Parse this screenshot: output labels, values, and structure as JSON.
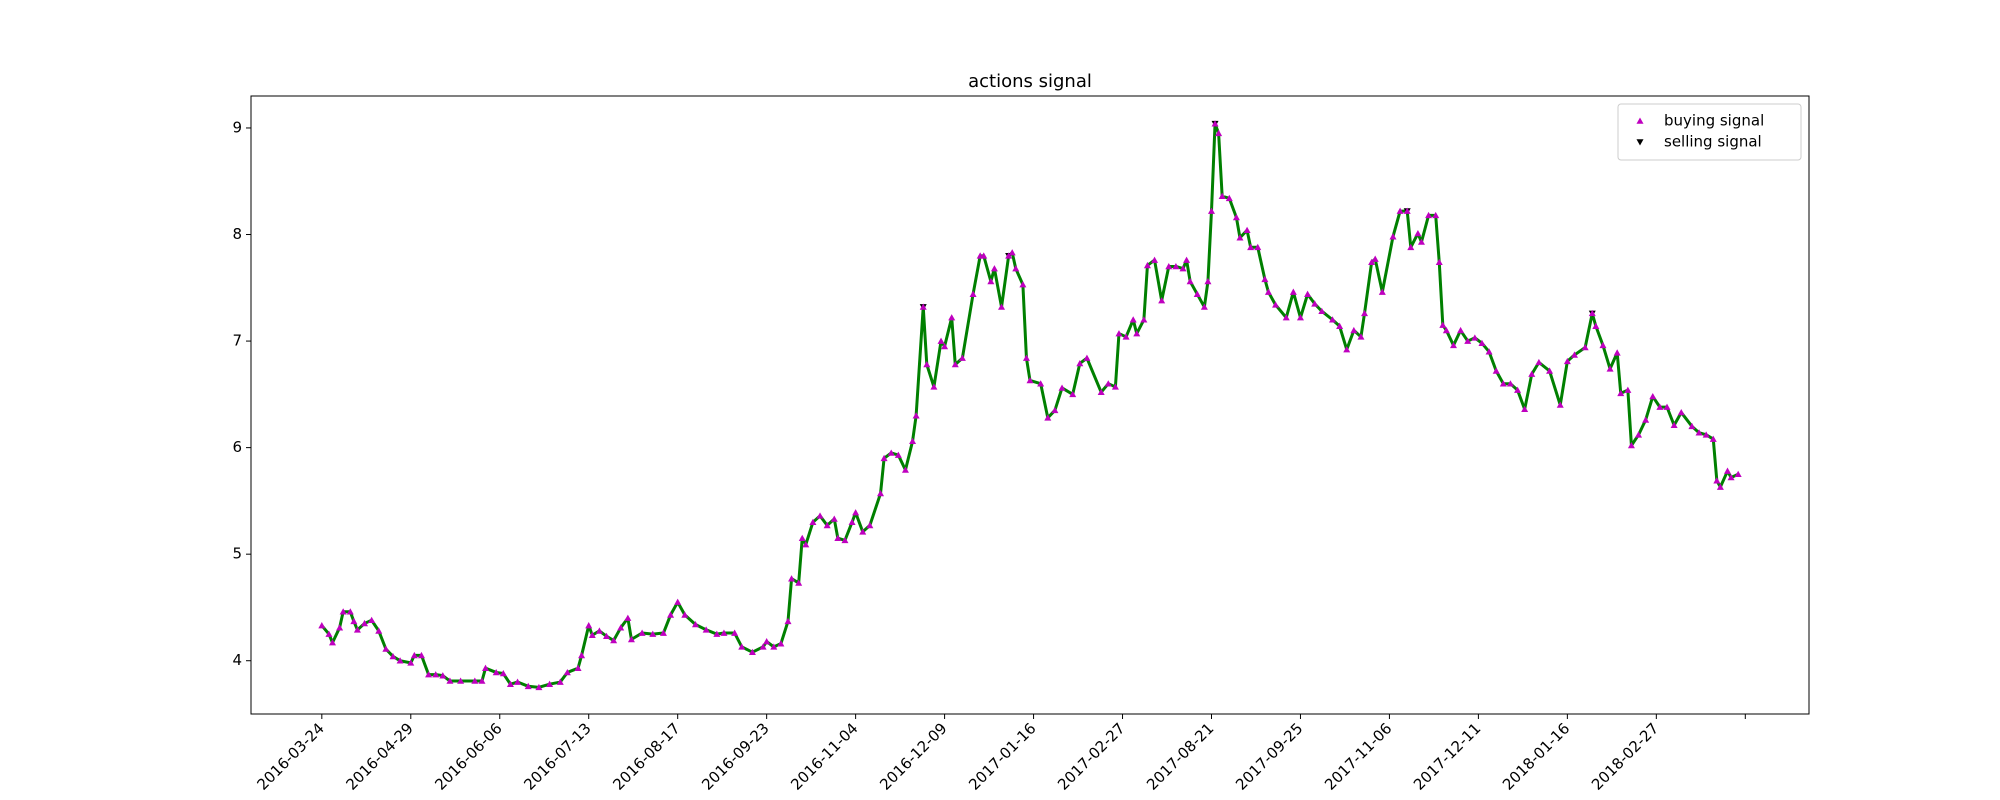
{
  "chart_data": {
    "type": "line",
    "title": "actions signal",
    "series": [
      {
        "color": "#008000",
        "x": [
          0,
          2,
          3,
          5,
          6,
          8,
          9,
          10,
          12,
          14,
          16,
          18,
          20,
          22,
          25,
          26,
          28,
          30,
          32,
          34,
          36,
          39,
          43,
          45,
          46,
          49,
          51,
          53,
          55,
          58,
          61,
          64,
          67,
          69,
          72,
          73,
          75,
          76,
          78,
          80,
          82,
          84,
          86,
          87,
          90,
          93,
          96,
          98,
          100,
          102,
          105,
          108,
          111,
          113,
          116,
          118,
          121,
          124,
          125,
          127,
          129,
          131,
          132,
          134,
          135,
          136,
          138,
          140,
          142,
          144,
          145,
          147,
          149,
          150,
          152,
          154,
          157,
          158,
          160,
          162,
          164,
          166,
          167,
          169,
          170,
          172,
          174,
          175,
          177,
          178,
          180,
          183,
          185,
          186,
          188,
          189,
          191,
          193,
          194,
          195,
          197,
          198,
          199,
          202,
          204,
          206,
          208,
          211,
          213,
          215,
          219,
          221,
          223,
          224,
          226,
          228,
          229,
          231,
          232,
          234,
          236,
          238,
          240,
          242,
          243,
          244,
          246,
          248,
          249,
          250,
          251,
          252,
          253,
          255,
          257,
          258,
          260,
          261,
          263,
          265,
          266,
          268,
          271,
          273,
          275,
          277,
          279,
          281,
          284,
          286,
          288,
          290,
          292,
          293,
          295,
          296,
          298,
          301,
          303,
          305,
          306,
          308,
          309,
          311,
          313,
          314,
          315,
          316,
          318,
          320,
          322,
          324,
          326,
          328,
          330,
          332,
          334,
          336,
          338,
          340,
          342,
          345,
          348,
          350,
          352,
          355,
          357,
          358,
          360,
          362,
          364,
          365,
          367,
          368,
          370,
          372,
          374,
          376,
          378,
          380,
          382,
          385,
          387,
          389,
          391,
          392,
          393,
          395,
          396,
          398
        ],
        "values": [
          4.33,
          4.25,
          4.17,
          4.31,
          4.46,
          4.46,
          4.37,
          4.29,
          4.35,
          4.38,
          4.28,
          4.11,
          4.04,
          4.0,
          3.98,
          4.05,
          4.05,
          3.87,
          3.87,
          3.86,
          3.81,
          3.81,
          3.81,
          3.81,
          3.93,
          3.89,
          3.88,
          3.78,
          3.8,
          3.76,
          3.75,
          3.78,
          3.8,
          3.89,
          3.93,
          4.05,
          4.33,
          4.24,
          4.28,
          4.23,
          4.19,
          4.31,
          4.4,
          4.2,
          4.26,
          4.25,
          4.26,
          4.43,
          4.55,
          4.43,
          4.34,
          4.29,
          4.25,
          4.26,
          4.26,
          4.13,
          4.08,
          4.13,
          4.18,
          4.13,
          4.16,
          4.37,
          4.77,
          4.73,
          5.15,
          5.09,
          5.3,
          5.36,
          5.27,
          5.33,
          5.15,
          5.13,
          5.3,
          5.39,
          5.21,
          5.27,
          5.57,
          5.9,
          5.95,
          5.93,
          5.79,
          6.06,
          6.3,
          7.32,
          6.78,
          6.57,
          7.0,
          6.95,
          7.22,
          6.78,
          6.84,
          7.44,
          7.8,
          7.8,
          7.56,
          7.68,
          7.32,
          7.8,
          7.83,
          7.68,
          7.53,
          6.84,
          6.63,
          6.6,
          6.28,
          6.35,
          6.56,
          6.5,
          6.79,
          6.84,
          6.52,
          6.6,
          6.57,
          7.07,
          7.04,
          7.2,
          7.07,
          7.2,
          7.71,
          7.76,
          7.38,
          7.7,
          7.7,
          7.68,
          7.76,
          7.56,
          7.44,
          7.32,
          7.56,
          8.22,
          9.04,
          8.95,
          8.36,
          8.34,
          8.16,
          7.97,
          8.04,
          7.88,
          7.88,
          7.58,
          7.46,
          7.34,
          7.22,
          7.46,
          7.22,
          7.44,
          7.35,
          7.28,
          7.2,
          7.14,
          6.92,
          7.1,
          7.04,
          7.26,
          7.74,
          7.77,
          7.46,
          7.98,
          8.22,
          8.22,
          7.88,
          8.01,
          7.93,
          8.18,
          8.18,
          7.74,
          7.15,
          7.1,
          6.96,
          7.1,
          7.0,
          7.03,
          6.98,
          6.9,
          6.72,
          6.6,
          6.6,
          6.54,
          6.36,
          6.69,
          6.8,
          6.72,
          6.4,
          6.81,
          6.87,
          6.94,
          7.26,
          7.14,
          6.96,
          6.74,
          6.89,
          6.51,
          6.54,
          6.02,
          6.12,
          6.26,
          6.48,
          6.38,
          6.38,
          6.21,
          6.33,
          6.2,
          6.14,
          6.12,
          6.08,
          5.69,
          5.63,
          5.78,
          5.72,
          5.75
        ]
      },
      {
        "name": "buying signal",
        "type": "scatter",
        "marker": "up",
        "color": "#bf00bf",
        "x": [
          0,
          2,
          3,
          5,
          6,
          8,
          9,
          10,
          12,
          14,
          16,
          18,
          20,
          22,
          25,
          26,
          28,
          30,
          32,
          34,
          36,
          39,
          43,
          45,
          46,
          49,
          51,
          53,
          55,
          58,
          61,
          64,
          67,
          69,
          72,
          73,
          75,
          76,
          78,
          80,
          82,
          84,
          86,
          87,
          90,
          93,
          96,
          98,
          100,
          102,
          105,
          108,
          111,
          113,
          116,
          118,
          121,
          124,
          125,
          127,
          129,
          131,
          132,
          134,
          135,
          136,
          138,
          140,
          142,
          144,
          145,
          147,
          149,
          150,
          152,
          154,
          157,
          158,
          160,
          162,
          164,
          166,
          167,
          169,
          170,
          172,
          174,
          175,
          177,
          178,
          180,
          183,
          185,
          186,
          188,
          189,
          191,
          193,
          194,
          195,
          197,
          198,
          199,
          202,
          204,
          206,
          208,
          211,
          213,
          215,
          219,
          221,
          223,
          224,
          226,
          228,
          229,
          231,
          232,
          234,
          236,
          238,
          240,
          242,
          243,
          244,
          246,
          248,
          249,
          250,
          251,
          252,
          253,
          255,
          257,
          258,
          260,
          261,
          263,
          265,
          266,
          268,
          271,
          273,
          275,
          277,
          279,
          281,
          284,
          286,
          288,
          290,
          292,
          293,
          295,
          296,
          298,
          301,
          303,
          305,
          306,
          308,
          309,
          311,
          313,
          314,
          315,
          316,
          318,
          320,
          322,
          324,
          326,
          328,
          330,
          332,
          334,
          336,
          338,
          340,
          342,
          345,
          348,
          350,
          352,
          355,
          357,
          358,
          360,
          362,
          364,
          365,
          367,
          368,
          370,
          372,
          374,
          376,
          378,
          380,
          382,
          385,
          387,
          389,
          391,
          392,
          393,
          395,
          396,
          398
        ],
        "values": [
          4.33,
          4.25,
          4.17,
          4.31,
          4.46,
          4.46,
          4.37,
          4.29,
          4.35,
          4.38,
          4.28,
          4.11,
          4.04,
          4.0,
          3.98,
          4.05,
          4.05,
          3.87,
          3.87,
          3.86,
          3.81,
          3.81,
          3.81,
          3.81,
          3.93,
          3.89,
          3.88,
          3.78,
          3.8,
          3.76,
          3.75,
          3.78,
          3.8,
          3.89,
          3.93,
          4.05,
          4.33,
          4.24,
          4.28,
          4.23,
          4.19,
          4.31,
          4.4,
          4.2,
          4.26,
          4.25,
          4.26,
          4.43,
          4.55,
          4.43,
          4.34,
          4.29,
          4.25,
          4.26,
          4.26,
          4.13,
          4.08,
          4.13,
          4.18,
          4.13,
          4.16,
          4.37,
          4.77,
          4.73,
          5.15,
          5.09,
          5.3,
          5.36,
          5.27,
          5.33,
          5.15,
          5.13,
          5.3,
          5.39,
          5.21,
          5.27,
          5.57,
          5.9,
          5.95,
          5.93,
          5.79,
          6.06,
          6.3,
          7.32,
          6.78,
          6.57,
          7.0,
          6.95,
          7.22,
          6.78,
          6.84,
          7.44,
          7.8,
          7.8,
          7.56,
          7.68,
          7.32,
          7.8,
          7.83,
          7.68,
          7.53,
          6.84,
          6.63,
          6.6,
          6.28,
          6.35,
          6.56,
          6.5,
          6.79,
          6.84,
          6.52,
          6.6,
          6.57,
          7.07,
          7.04,
          7.2,
          7.07,
          7.2,
          7.71,
          7.76,
          7.38,
          7.7,
          7.7,
          7.68,
          7.76,
          7.56,
          7.44,
          7.32,
          7.56,
          8.22,
          9.04,
          8.95,
          8.36,
          8.34,
          8.16,
          7.97,
          8.04,
          7.88,
          7.88,
          7.58,
          7.46,
          7.34,
          7.22,
          7.46,
          7.22,
          7.44,
          7.35,
          7.28,
          7.2,
          7.14,
          6.92,
          7.1,
          7.04,
          7.26,
          7.74,
          7.77,
          7.46,
          7.98,
          8.22,
          8.22,
          7.88,
          8.01,
          7.93,
          8.18,
          8.18,
          7.74,
          7.15,
          7.1,
          6.96,
          7.1,
          7.0,
          7.03,
          6.98,
          6.9,
          6.72,
          6.6,
          6.6,
          6.54,
          6.36,
          6.69,
          6.8,
          6.72,
          6.4,
          6.81,
          6.87,
          6.94,
          7.26,
          7.14,
          6.96,
          6.74,
          6.89,
          6.51,
          6.54,
          6.02,
          6.12,
          6.26,
          6.48,
          6.38,
          6.38,
          6.21,
          6.33,
          6.2,
          6.14,
          6.12,
          6.08,
          5.69,
          5.63,
          5.78,
          5.72,
          5.75
        ]
      },
      {
        "name": "selling signal",
        "type": "scatter",
        "marker": "down",
        "color": "#000000",
        "x": [
          169,
          193,
          251,
          305,
          357
        ],
        "values": [
          7.32,
          7.8,
          9.04,
          8.22,
          7.26
        ]
      }
    ],
    "xlim": [
      -19.9,
      417.9
    ],
    "ylim": [
      3.5,
      9.3
    ],
    "xticks": [
      {
        "value": 0,
        "label": "2016-03-24"
      },
      {
        "value": 25,
        "label": "2016-04-29"
      },
      {
        "value": 50,
        "label": "2016-06-06"
      },
      {
        "value": 75,
        "label": "2016-07-13"
      },
      {
        "value": 100,
        "label": "2016-08-17"
      },
      {
        "value": 125,
        "label": "2016-09-23"
      },
      {
        "value": 150,
        "label": "2016-11-04"
      },
      {
        "value": 175,
        "label": "2016-12-09"
      },
      {
        "value": 200,
        "label": "2017-01-16"
      },
      {
        "value": 225,
        "label": "2017-02-27"
      },
      {
        "value": 250,
        "label": "2017-08-21"
      },
      {
        "value": 275,
        "label": "2017-09-25"
      },
      {
        "value": 300,
        "label": "2017-11-06"
      },
      {
        "value": 325,
        "label": "2017-12-11"
      },
      {
        "value": 350,
        "label": "2018-01-16"
      },
      {
        "value": 375,
        "label": "2018-02-27"
      },
      {
        "value": 400,
        "label": null
      }
    ],
    "yticks": [
      4,
      5,
      6,
      7,
      8,
      9
    ],
    "legend": "upper right"
  }
}
